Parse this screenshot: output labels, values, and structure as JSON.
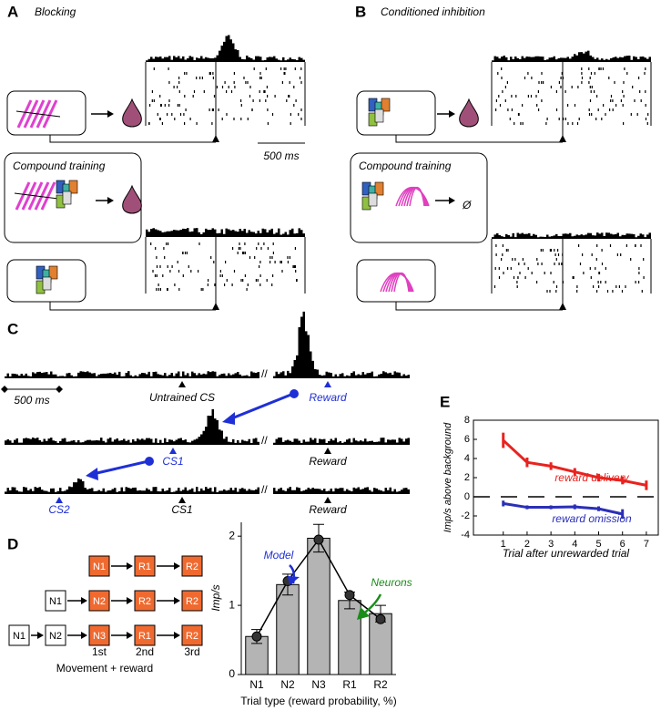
{
  "panels": {
    "A": {
      "label": "A",
      "title": "Blocking",
      "compound": "Compound training",
      "scale": "500 ms"
    },
    "B": {
      "label": "B",
      "title": "Conditioned inhibition",
      "compound": "Compound training",
      "null_symbol": "Ø"
    },
    "C": {
      "label": "C",
      "scale": "500 ms",
      "untrained": "Untrained CS",
      "reward_1": "Reward",
      "cs1_blue": "CS1",
      "reward_2": "Reward",
      "cs2_blue": "CS2",
      "cs1_black": "CS1",
      "reward_3": "Reward"
    },
    "D": {
      "label": "D",
      "rows": [
        [
          "N1",
          "R1",
          "R2"
        ],
        [
          "N1",
          "N2",
          "R2",
          "R2"
        ],
        [
          "N1",
          "N2",
          "N3",
          "R1",
          "R2"
        ]
      ],
      "ordinals": [
        "1st",
        "2nd",
        "3rd"
      ],
      "caption": "Movement + reward"
    },
    "E": {
      "label": "E"
    }
  },
  "chart_data": [
    {
      "type": "bar",
      "categories": [
        "N1",
        "N2",
        "N3",
        "R1",
        "R2"
      ],
      "values": [
        0.55,
        1.3,
        1.97,
        1.07,
        0.88
      ],
      "errors": [
        0.1,
        0.15,
        0.2,
        0.12,
        0.12
      ],
      "color": "#b4b4b4",
      "model": [
        0.55,
        1.35,
        1.95,
        1.15,
        0.8
      ],
      "ylim": [
        0,
        2.2
      ],
      "yticks": [
        0,
        1,
        2
      ],
      "ylabel": "Imp/s",
      "xlabel": "Trial type (reward probability, %)",
      "annotations": [
        {
          "text": "Model",
          "color": "#1f2fd6"
        },
        {
          "text": "Neurons",
          "color": "#1a8c1a"
        }
      ]
    },
    {
      "type": "line",
      "x": [
        1,
        2,
        3,
        4,
        5,
        6,
        7
      ],
      "series": [
        {
          "name": "reward delivery",
          "color": "#e8231f",
          "values": [
            5.9,
            3.6,
            3.2,
            2.6,
            2.0,
            1.7,
            1.2
          ],
          "errors": [
            0.8,
            0.5,
            0.4,
            0.4,
            0.4,
            0.4,
            0.5
          ]
        },
        {
          "name": "reward omission",
          "color": "#2a2fb8",
          "values": [
            -0.7,
            -1.1,
            -1.1,
            -1.05,
            -1.25,
            -1.8,
            null
          ],
          "errors": [
            0.3,
            0.2,
            0.2,
            0.25,
            0.25,
            0.5,
            null
          ]
        }
      ],
      "xlim": [
        -0.25,
        7.5
      ],
      "ylim": [
        -4,
        8
      ],
      "xticks": [
        1,
        2,
        3,
        4,
        5,
        6,
        7
      ],
      "yticks": [
        -4,
        -2,
        0,
        2,
        4,
        6,
        8
      ],
      "zero_line": true,
      "xlabel": "Trial after unrewarded trial",
      "ylabel": "Imp/s above background"
    }
  ]
}
